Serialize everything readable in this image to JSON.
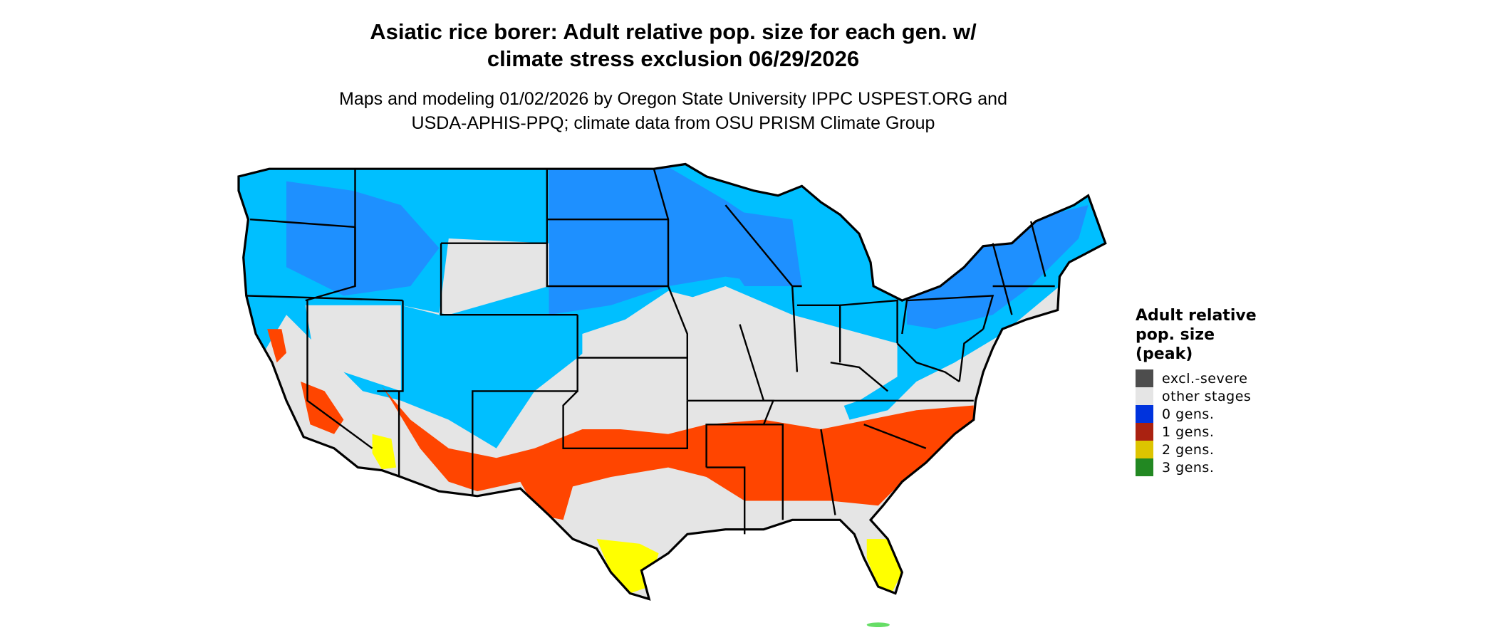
{
  "title": {
    "line1": "Asiatic rice borer: Adult relative pop. size for each gen. w/",
    "line2": "climate stress exclusion 06/29/2026"
  },
  "subtitle": {
    "line1": "Maps and modeling 01/02/2026 by Oregon State University IPPC USPEST.ORG and",
    "line2": "USDA-APHIS-PPQ; climate data from OSU PRISM Climate Group"
  },
  "legend": {
    "title_lines": [
      "Adult relative",
      "pop. size",
      "(peak)"
    ],
    "items": [
      {
        "label": "excl.-severe",
        "color": "#4d4d4d"
      },
      {
        "label": "other stages",
        "color": "#e5e5e5"
      },
      {
        "label": "0 gens.",
        "color": "#0033dd"
      },
      {
        "label": "1 gens.",
        "color": "#aa2211"
      },
      {
        "label": "2 gens.",
        "color": "#ddc400"
      },
      {
        "label": "3 gens.",
        "color": "#228822"
      }
    ]
  },
  "map_colors": {
    "background_land": "#e5e5e5",
    "zero_gens_light": "#00bfff",
    "zero_gens_mid": "#1e90ff",
    "one_gen": "#ff4500",
    "two_gens": "#ffff00",
    "three_gens": "#66dd66",
    "borders": "#000000"
  }
}
